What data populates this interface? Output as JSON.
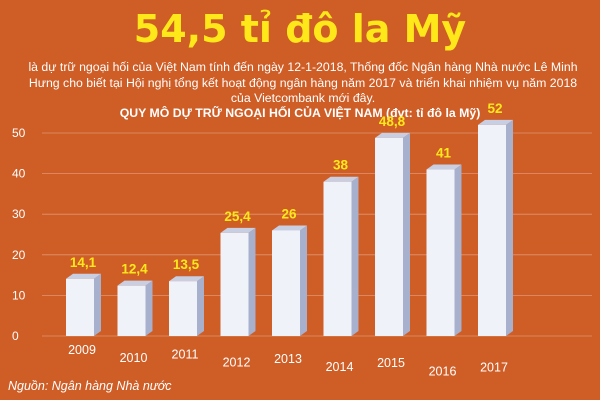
{
  "headline": "54,5 tỉ đô la Mỹ",
  "description": "là dự trữ ngoại hối của Việt Nam tính đến ngày 12-1-2018, Thống đốc Ngân hàng Nhà nước Lê Minh Hưng cho biết tại Hội nghị tổng kết hoạt động ngân hàng năm 2017 và triển khai nhiệm vụ năm 2018 của Vietcombank mới đây.",
  "source": "Nguồn: Ngân hàng Nhà nước",
  "colors": {
    "background": "#cf5d26",
    "headline": "#ffe81a",
    "value_labels": "#ffe81a",
    "bar_front": "#f0f2fa",
    "bar_side": "#a7b0cc"
  },
  "chart_data": {
    "type": "bar",
    "title": "QUY MÔ DỰ TRỮ NGOẠI HỐI CỦA VIỆT NAM (đvt: tỉ đô la Mỹ)",
    "categories": [
      "2009",
      "2010",
      "2011",
      "2012",
      "2013",
      "2014",
      "2015",
      "2016",
      "2017"
    ],
    "values": [
      14.1,
      12.4,
      13.5,
      25.4,
      26,
      38,
      48.8,
      41,
      52
    ],
    "value_labels": [
      "14,1",
      "12,4",
      "13,5",
      "25,4",
      "26",
      "38",
      "48,8",
      "41",
      "52"
    ],
    "yticks": [
      "0",
      "10",
      "20",
      "30",
      "40",
      "50"
    ],
    "ylim": [
      0,
      50
    ],
    "grid": true,
    "legend": false,
    "style": "3d-column"
  }
}
